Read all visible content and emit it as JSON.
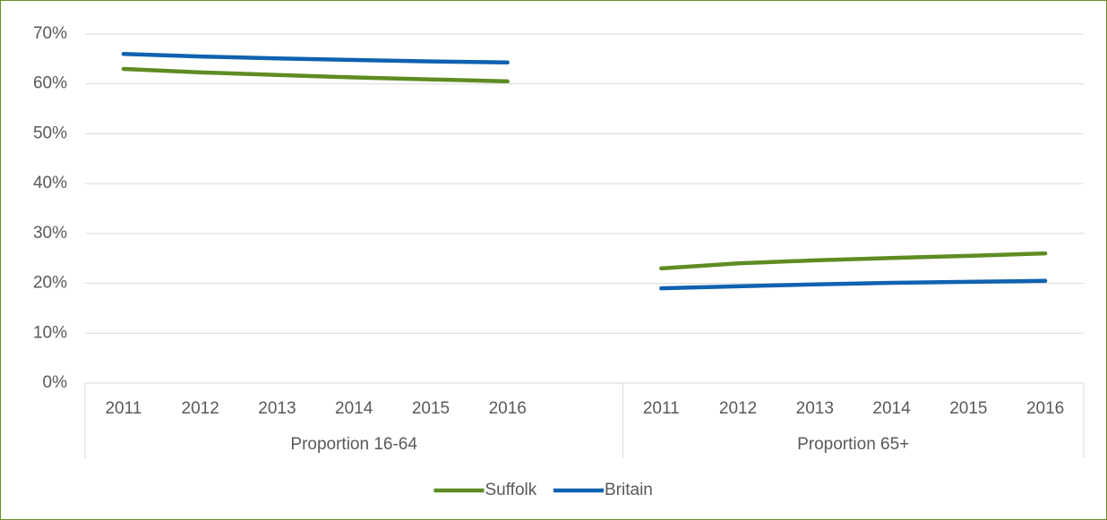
{
  "chart_data": {
    "type": "line",
    "groups": [
      {
        "label": "Proportion 16-64",
        "categories": [
          "2011",
          "2012",
          "2013",
          "2014",
          "2015",
          "2016",
          null
        ]
      },
      {
        "label": "Proportion 65+",
        "categories": [
          "2011",
          "2012",
          "2013",
          "2014",
          "2015",
          "2016"
        ]
      }
    ],
    "series": [
      {
        "name": "Suffolk",
        "color": "#5e8c22",
        "values": [
          63,
          62.3,
          61.8,
          61.3,
          60.9,
          60.5,
          null,
          23,
          24,
          24.6,
          25.1,
          25.5,
          26
        ]
      },
      {
        "name": "Britain",
        "color": "#0f62b0",
        "values": [
          66,
          65.5,
          65.1,
          64.8,
          64.5,
          64.3,
          null,
          19,
          19.4,
          19.8,
          20.1,
          20.3,
          20.5
        ]
      }
    ],
    "ylim": [
      0,
      70
    ],
    "yticks": [
      {
        "value": 0,
        "label": "0%"
      },
      {
        "value": 10,
        "label": "10%"
      },
      {
        "value": 20,
        "label": "20%"
      },
      {
        "value": 30,
        "label": "30%"
      },
      {
        "value": 40,
        "label": "40%"
      },
      {
        "value": 50,
        "label": "50%"
      },
      {
        "value": 60,
        "label": "60%"
      },
      {
        "value": 70,
        "label": "70%"
      }
    ],
    "grid": true,
    "legend": "bottom"
  }
}
